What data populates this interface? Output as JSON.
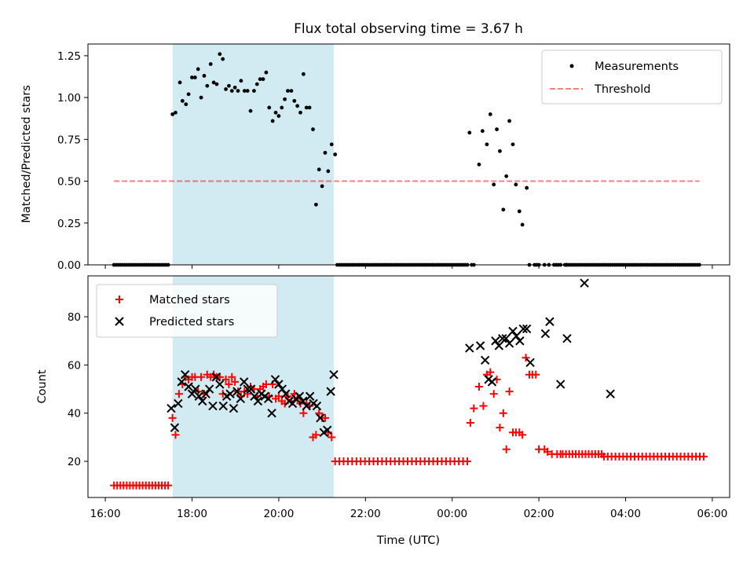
{
  "chart_data": [
    {
      "type": "scatter",
      "title": "Flux total observing time = 3.67 h",
      "xlabel": "",
      "ylabel": "Matched/Predicted stars",
      "ylim": [
        0,
        1.32
      ],
      "yticks": [
        "0.00",
        "0.25",
        "0.50",
        "0.75",
        "1.00",
        "1.25"
      ],
      "yticks_values": [
        0,
        0.25,
        0.5,
        0.75,
        1.0,
        1.25
      ],
      "xlim_hours": [
        15.6,
        30.4
      ],
      "highlight_span_hours": [
        17.55,
        21.27
      ],
      "highlight_color": "#add8e6",
      "threshold": {
        "value": 0.5,
        "x_range_hours": [
          16.2,
          29.7
        ],
        "color": "#ff0000",
        "label": "Threshold"
      },
      "legend": {
        "position": "top-right",
        "entries": [
          "Measurements",
          "Threshold"
        ]
      },
      "series": [
        {
          "name": "Measurements",
          "color": "#000000",
          "marker": "dot",
          "x_hours": [
            17.55,
            17.62,
            17.72,
            17.78,
            17.86,
            17.92,
            18.0,
            18.07,
            18.14,
            18.21,
            18.28,
            18.35,
            18.43,
            18.5,
            18.57,
            18.64,
            18.71,
            18.78,
            18.85,
            18.92,
            18.99,
            19.06,
            19.13,
            19.21,
            19.28,
            19.35,
            19.43,
            19.5,
            19.57,
            19.64,
            19.71,
            19.78,
            19.86,
            19.93,
            20.0,
            20.07,
            20.14,
            20.21,
            20.29,
            20.36,
            20.43,
            20.5,
            20.57,
            20.64,
            20.71,
            20.79,
            20.86,
            20.93,
            21.0,
            21.07,
            21.14,
            21.22,
            21.3,
            24.4,
            24.62,
            24.7,
            24.8,
            24.88,
            24.96,
            25.03,
            25.1,
            25.18,
            25.25,
            25.32,
            25.4,
            25.47,
            25.55,
            25.62,
            25.72,
            25.78,
            26.13,
            26.23,
            26.5,
            26.63,
            27.05,
            27.65
          ],
          "y": [
            0.9,
            0.91,
            1.09,
            0.98,
            0.96,
            1.02,
            1.12,
            1.12,
            1.17,
            1.0,
            1.13,
            1.07,
            1.2,
            1.09,
            1.08,
            1.26,
            1.23,
            1.05,
            1.07,
            1.04,
            1.06,
            1.04,
            1.1,
            1.04,
            1.04,
            0.92,
            1.04,
            1.08,
            1.11,
            1.11,
            1.15,
            0.94,
            0.86,
            0.91,
            0.89,
            0.94,
            0.99,
            1.04,
            1.04,
            0.98,
            0.95,
            0.91,
            1.14,
            0.94,
            0.94,
            0.81,
            0.36,
            0.57,
            0.47,
            0.67,
            0.56,
            0.72,
            0.66,
            0.79,
            0.6,
            0.8,
            0.72,
            0.9,
            0.48,
            0.81,
            0.68,
            0.33,
            0.53,
            0.86,
            0.72,
            0.48,
            0.32,
            0.24,
            0.46,
            0.0,
            0.0,
            0.0,
            0.0,
            0.0,
            0.0,
            0.0
          ],
          "zero_runs_hours": [
            [
              16.2,
              17.45,
              0.05
            ],
            [
              21.35,
              24.35,
              0.05
            ],
            [
              24.45,
              24.5,
              0.05
            ],
            [
              25.9,
              26.0,
              0.05
            ],
            [
              26.35,
              26.45,
              0.05
            ],
            [
              26.6,
              27.0,
              0.05
            ],
            [
              27.1,
              27.6,
              0.05
            ],
            [
              27.7,
              29.7,
              0.05
            ]
          ]
        }
      ]
    },
    {
      "type": "scatter",
      "title": "",
      "xlabel": "Time (UTC)",
      "ylabel": "Count",
      "ylim": [
        5,
        97
      ],
      "yticks": [
        "20",
        "40",
        "60",
        "80"
      ],
      "yticks_values": [
        20,
        40,
        60,
        80
      ],
      "xlim_hours": [
        15.6,
        30.4
      ],
      "xticks": [
        "16:00",
        "18:00",
        "20:00",
        "22:00",
        "00:00",
        "02:00",
        "04:00",
        "06:00"
      ],
      "xticks_hours": [
        16,
        18,
        20,
        22,
        24,
        26,
        28,
        30
      ],
      "highlight_span_hours": [
        17.55,
        21.27
      ],
      "highlight_color": "#add8e6",
      "legend": {
        "position": "top-left",
        "entries": [
          "Matched stars",
          "Predicted stars"
        ]
      },
      "series": [
        {
          "name": "Matched stars",
          "color": "#ff0000",
          "marker": "plus",
          "x_hours": [
            17.55,
            17.62,
            17.7,
            17.78,
            17.85,
            17.92,
            18.0,
            18.07,
            18.14,
            18.21,
            18.28,
            18.35,
            18.43,
            18.5,
            18.57,
            18.64,
            18.71,
            18.78,
            18.85,
            18.92,
            18.99,
            19.06,
            19.13,
            19.21,
            19.28,
            19.35,
            19.43,
            19.5,
            19.57,
            19.64,
            19.71,
            19.78,
            19.86,
            19.93,
            20.0,
            20.07,
            20.14,
            20.21,
            20.29,
            20.36,
            20.43,
            20.5,
            20.57,
            20.64,
            20.71,
            20.79,
            20.86,
            20.93,
            21.0,
            21.07,
            21.14,
            21.22,
            24.42,
            24.5,
            24.62,
            24.72,
            24.8,
            24.88,
            24.96,
            25.03,
            25.1,
            25.18,
            25.25,
            25.32,
            25.4,
            25.47,
            25.55,
            25.62,
            25.7,
            25.78,
            25.85,
            25.93,
            26.0,
            26.13,
            26.2,
            26.3,
            26.42,
            26.5
          ],
          "y": [
            38,
            31,
            48,
            52,
            55,
            54,
            55,
            55,
            49,
            55,
            48,
            56,
            55,
            56,
            55,
            55,
            48,
            54,
            52,
            55,
            53,
            49,
            47,
            49,
            48,
            51,
            50,
            47,
            50,
            51,
            52,
            47,
            52,
            46,
            47,
            45,
            44,
            47,
            45,
            48,
            46,
            44,
            40,
            44,
            43,
            30,
            31,
            40,
            38,
            38,
            32,
            30,
            36,
            42,
            51,
            43,
            56,
            57,
            48,
            54,
            34,
            40,
            25,
            49,
            32,
            32,
            32,
            31,
            63,
            56,
            56,
            56,
            25,
            25,
            24,
            23,
            23,
            23
          ],
          "flat_runs_hours": [
            [
              16.2,
              17.45,
              10,
              18
            ],
            [
              21.3,
              24.35,
              20,
              32
            ],
            [
              26.55,
              27.45,
              23,
              13
            ],
            [
              27.5,
              29.8,
              22,
              27
            ]
          ]
        },
        {
          "name": "Predicted stars",
          "color": "#000000",
          "marker": "x",
          "x_hours": [
            17.52,
            17.6,
            17.68,
            17.76,
            17.84,
            17.92,
            18.0,
            18.08,
            18.16,
            18.24,
            18.32,
            18.4,
            18.48,
            18.56,
            18.64,
            18.72,
            18.8,
            18.88,
            18.96,
            19.04,
            19.12,
            19.2,
            19.28,
            19.36,
            19.44,
            19.52,
            19.6,
            19.68,
            19.76,
            19.84,
            19.92,
            20.0,
            20.08,
            20.16,
            20.24,
            20.32,
            20.4,
            20.48,
            20.56,
            20.64,
            20.72,
            20.8,
            20.88,
            20.96,
            21.04,
            21.12,
            21.2,
            21.27,
            24.4,
            24.65,
            24.76,
            24.84,
            24.92,
            25.0,
            25.08,
            25.16,
            25.24,
            25.32,
            25.4,
            25.48,
            25.56,
            25.64,
            25.72,
            25.8,
            26.15,
            26.25,
            26.5,
            26.65,
            27.05,
            27.65
          ],
          "y": [
            42,
            34,
            44,
            53,
            56,
            51,
            48,
            50,
            47,
            45,
            48,
            50,
            43,
            55,
            52,
            43,
            47,
            48,
            42,
            49,
            46,
            53,
            50,
            50,
            47,
            45,
            48,
            47,
            46,
            40,
            54,
            52,
            50,
            48,
            45,
            44,
            46,
            47,
            45,
            43,
            47,
            44,
            43,
            38,
            32,
            33,
            49,
            56,
            67,
            68,
            62,
            54,
            53,
            70,
            68,
            71,
            71,
            69,
            74,
            72,
            70,
            75,
            75,
            61,
            73,
            78,
            52,
            71,
            94,
            48
          ]
        }
      ]
    }
  ]
}
